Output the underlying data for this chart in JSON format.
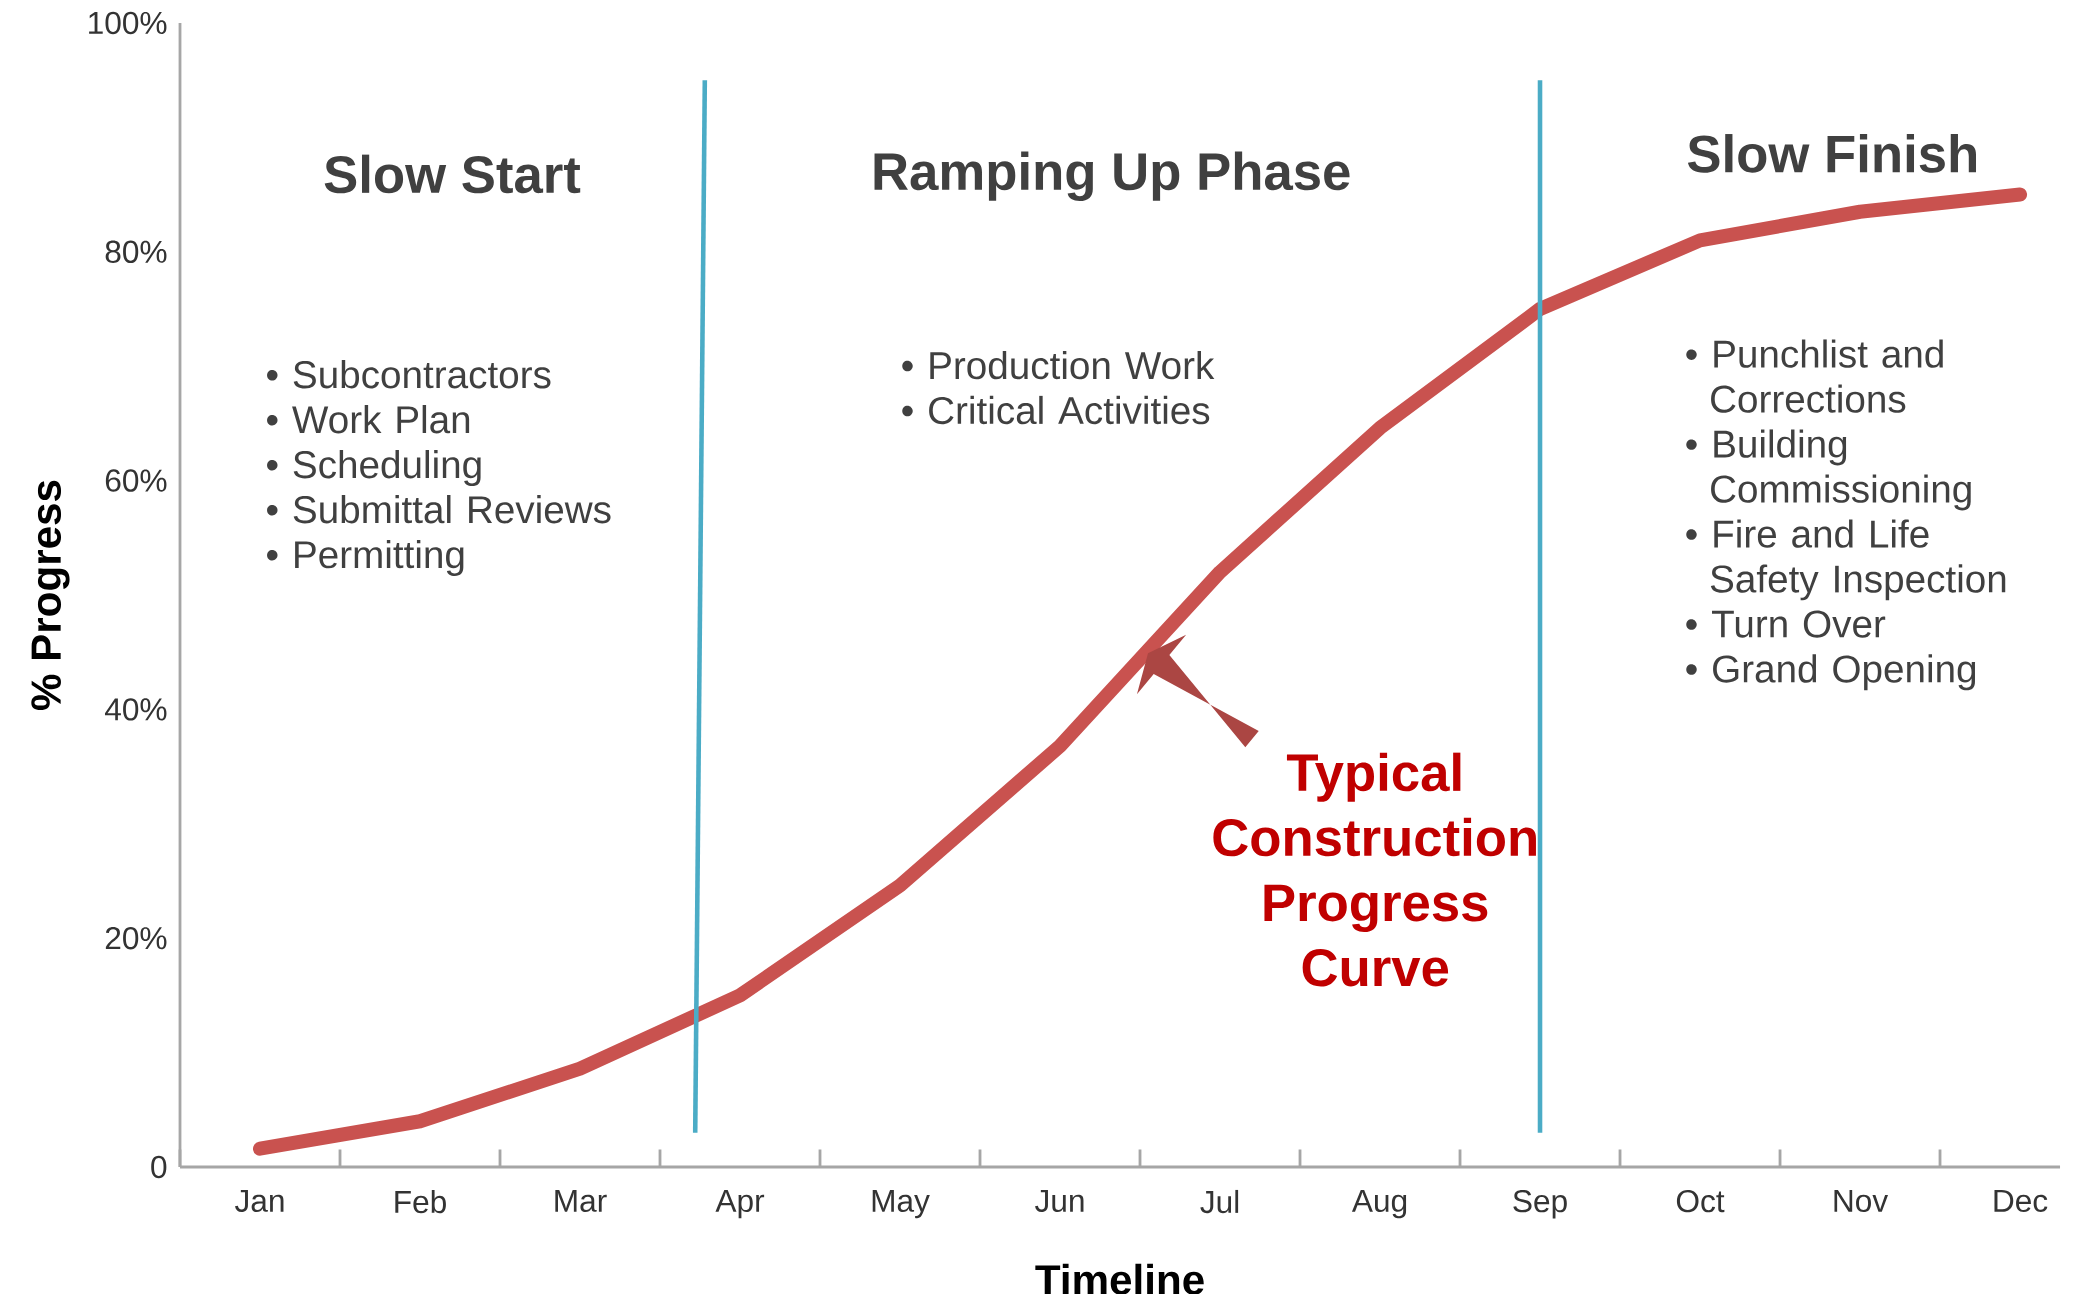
{
  "chart_data": {
    "type": "line",
    "xlabel": "Timeline",
    "ylabel": "% Progress",
    "categories": [
      "Jan",
      "Feb",
      "Mar",
      "Apr",
      "May",
      "Jun",
      "Jul",
      "Aug",
      "Sep",
      "Oct",
      "Nov",
      "Dec"
    ],
    "values": [
      1.6,
      4,
      8.6,
      15,
      24.6,
      36.8,
      52,
      64.6,
      75,
      81,
      83.5,
      85
    ],
    "color": "#c9524f",
    "ylim": [
      0,
      100
    ],
    "yticks": [
      0,
      {
        "value": 20,
        "label": "20%"
      },
      {
        "value": 40,
        "label": "40%"
      },
      {
        "value": 60,
        "label": "60%"
      },
      {
        "value": 80,
        "label": "80%"
      },
      {
        "value": 100,
        "label": "100%"
      }
    ],
    "ref_lines": [
      {
        "axis": "x",
        "value": "Sep",
        "color": "#4bacc6"
      }
    ],
    "annotations": [
      "Slow Start",
      "• Subcontractors",
      "• Work Plan",
      "• Scheduling",
      "• Submittal Reviews",
      "• Permitting",
      "Ramping Up Phase",
      "• Production Work",
      "• Critical Activities",
      "Slow Finish",
      "• Punchlist and Corrections",
      "• Building Commissioning",
      "• Fire and Life Safety Inspection",
      "• Turn Over",
      "• Grand Opening",
      "Typical Construction Progress Curve"
    ],
    "grid": false,
    "marker": "none",
    "line_style": "solid"
  }
}
